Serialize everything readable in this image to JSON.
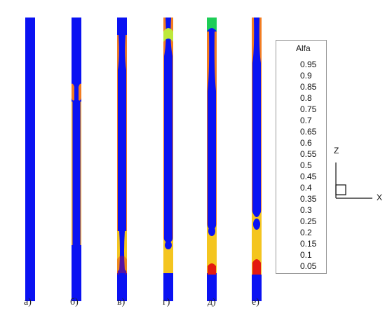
{
  "legend": {
    "title": "Alfa",
    "levels": [
      "0.95",
      "0.9",
      "0.85",
      "0.8",
      "0.75",
      "0.7",
      "0.65",
      "0.6",
      "0.55",
      "0.5",
      "0.45",
      "0.4",
      "0.35",
      "0.3",
      "0.25",
      "0.2",
      "0.15",
      "0.1",
      "0.05"
    ],
    "colors": [
      "#e31a10",
      "#f0501c",
      "#f27d22",
      "#f7a624",
      "#f4c51f",
      "#e7de2a",
      "#bde83b",
      "#86e34b",
      "#50d854",
      "#1ecd57",
      "#17d18a",
      "#1ad7bd",
      "#16d6df",
      "#12b8e8",
      "#0f8ceb",
      "#0b62ee",
      "#0a3af0",
      "#0a1ff1",
      "#0a12f2"
    ]
  },
  "axes": {
    "z": "Z",
    "x": "X"
  },
  "panels": [
    {
      "label": "а)"
    },
    {
      "label": "б)"
    },
    {
      "label": "в)"
    },
    {
      "label": "г)"
    },
    {
      "label": "д)"
    },
    {
      "label": "е)"
    }
  ]
}
